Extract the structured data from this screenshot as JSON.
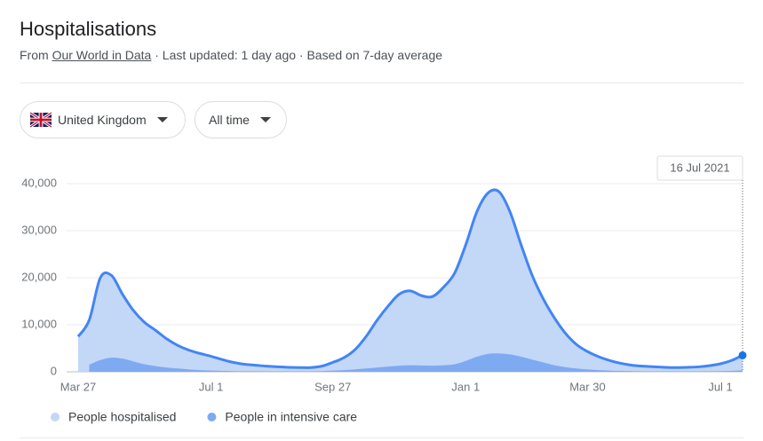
{
  "header": {
    "title": "Hospitalisations",
    "source_prefix": "From",
    "source_link": "Our World in Data",
    "source_suffix": "· Last updated: 1 day ago · Based on 7-day average"
  },
  "filters": {
    "region": "United Kingdom",
    "period": "All time"
  },
  "chart_data": {
    "type": "area",
    "x": [
      "Mar 27",
      null,
      null,
      null,
      null,
      null,
      null,
      null,
      null,
      null,
      null,
      null,
      "Jul 1",
      null,
      null,
      null,
      null,
      null,
      null,
      null,
      null,
      null,
      null,
      "Sep 27",
      null,
      null,
      null,
      null,
      null,
      null,
      null,
      null,
      null,
      null,
      null,
      "Jan 1",
      null,
      null,
      null,
      null,
      null,
      null,
      null,
      null,
      null,
      null,
      "Mar 30",
      null,
      null,
      null,
      null,
      null,
      null,
      null,
      null,
      null,
      null,
      null,
      "Jul 1",
      null,
      null
    ],
    "series": [
      {
        "name": "People hospitalised",
        "color": "#4285f4",
        "fill": "#c3d7f7",
        "values": [
          7500,
          11000,
          20000,
          20500,
          16500,
          13000,
          10500,
          8800,
          7000,
          5600,
          4600,
          3900,
          3300,
          2600,
          2000,
          1600,
          1400,
          1200,
          1050,
          950,
          900,
          900,
          1200,
          2000,
          3000,
          4700,
          7500,
          11000,
          14000,
          16500,
          17200,
          16200,
          16000,
          18000,
          21000,
          27000,
          34000,
          38000,
          38300,
          34000,
          27000,
          20500,
          15500,
          11500,
          8200,
          5800,
          4300,
          3200,
          2400,
          1800,
          1400,
          1200,
          1050,
          950,
          900,
          950,
          1050,
          1300,
          1700,
          2400,
          3500
        ]
      },
      {
        "name": "People in intensive care",
        "fill": "#7eaaf2",
        "values": [
          null,
          1500,
          2500,
          3000,
          2800,
          2200,
          1600,
          1200,
          900,
          700,
          500,
          350,
          250,
          200,
          150,
          120,
          110,
          100,
          100,
          100,
          100,
          100,
          150,
          250,
          350,
          500,
          700,
          900,
          1100,
          1300,
          1400,
          1350,
          1300,
          1400,
          1600,
          2300,
          3200,
          3800,
          3900,
          3700,
          3200,
          2600,
          2000,
          1400,
          1000,
          700,
          500,
          350,
          250,
          180,
          130,
          100,
          100,
          100,
          100,
          100,
          100,
          120,
          150,
          200,
          300
        ]
      }
    ],
    "ylim": [
      0,
      40000
    ],
    "yticks": [
      0,
      {
        "value": 10000,
        "label": "10,000"
      },
      {
        "value": 20000,
        "label": "20,000"
      },
      {
        "value": 30000,
        "label": "30,000"
      },
      {
        "value": 40000,
        "label": "40,000"
      }
    ],
    "grid": true,
    "tooltip": "16 Jul 2021"
  }
}
